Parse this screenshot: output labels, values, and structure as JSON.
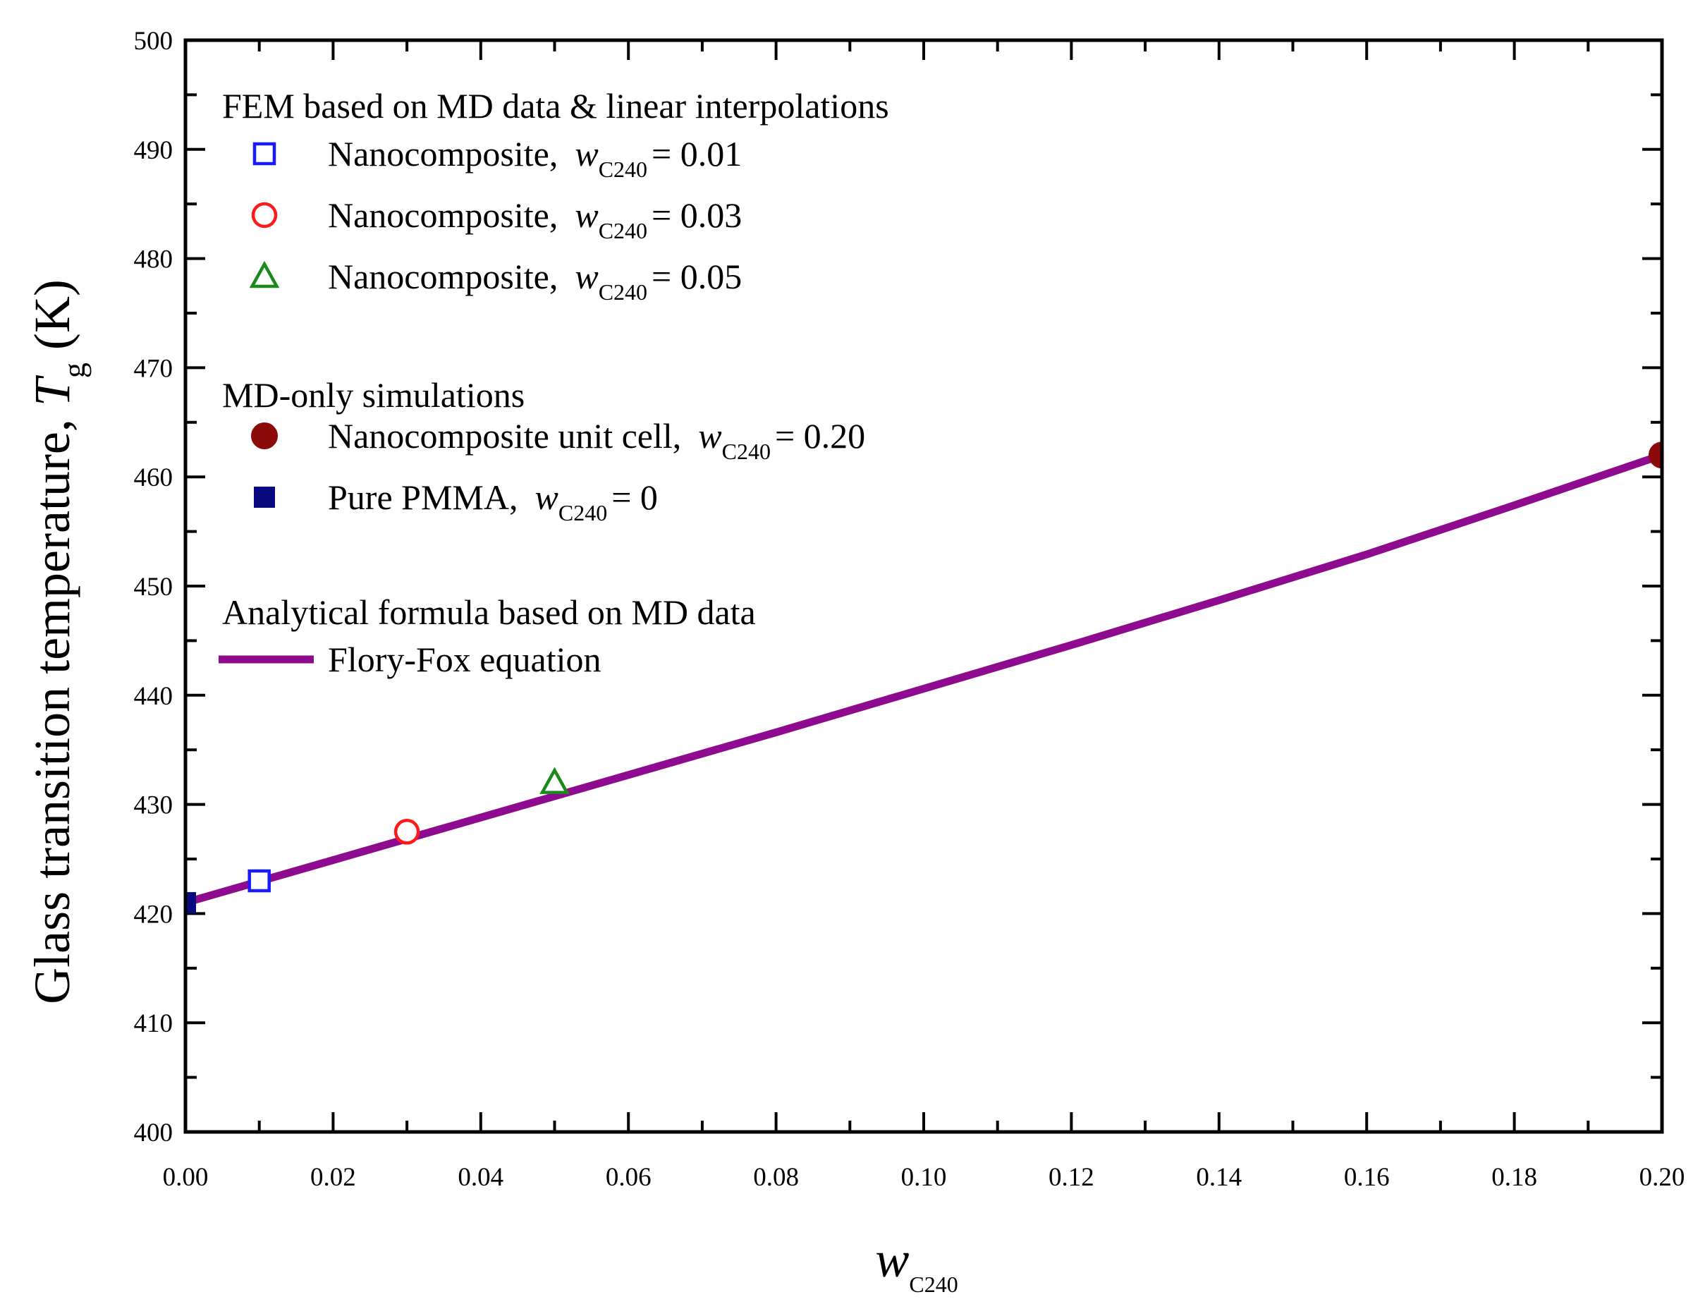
{
  "chart_data": {
    "type": "scatter",
    "xlabel": {
      "var": "w",
      "sub": "C240"
    },
    "ylabel": {
      "prefix": "Glass transition temperature, ",
      "var": "T",
      "sub": "g",
      "unit": " (K)"
    },
    "xlim": [
      0.0,
      0.2
    ],
    "ylim": [
      400,
      500
    ],
    "x_ticks": [
      "0.00",
      "0.02",
      "0.04",
      "0.06",
      "0.08",
      "0.10",
      "0.12",
      "0.14",
      "0.16",
      "0.18",
      "0.20"
    ],
    "y_ticks": [
      "400",
      "410",
      "420",
      "430",
      "440",
      "450",
      "460",
      "470",
      "480",
      "490",
      "500"
    ],
    "legend": {
      "groups": [
        {
          "heading": "FEM based on MD data & linear interpolations",
          "entries": [
            {
              "label": "Nanocomposite,",
              "var": "w",
              "sub": "C240",
              "value": "= 0.01",
              "marker": "open-square",
              "color": "#1a1aff"
            },
            {
              "label": "Nanocomposite,",
              "var": "w",
              "sub": "C240",
              "value": "= 0.03",
              "marker": "open-circle",
              "color": "#ff1a1a"
            },
            {
              "label": "Nanocomposite,",
              "var": "w",
              "sub": "C240",
              "value": "= 0.05",
              "marker": "open-triangle",
              "color": "#1a8a1a"
            }
          ]
        },
        {
          "heading": "MD-only simulations",
          "entries": [
            {
              "label": "Nanocomposite unit cell,",
              "var": "w",
              "sub": "C240",
              "value": "= 0.20",
              "marker": "filled-circle",
              "color": "#8b0a0a"
            },
            {
              "label": "Pure PMMA,",
              "var": "w",
              "sub": "C240",
              "value": "= 0",
              "marker": "filled-square",
              "color": "#0a0a80"
            }
          ]
        },
        {
          "heading": "Analytical formula based on MD data",
          "entries": [
            {
              "label": "Flory-Fox equation",
              "marker": "line",
              "color": "#8e0a8e"
            }
          ]
        }
      ]
    },
    "series": [
      {
        "name": "Nanocomposite, w_C240 = 0.01",
        "marker": "open-square",
        "color": "#1a1aff",
        "x": [
          0.01
        ],
        "y": [
          423.0
        ]
      },
      {
        "name": "Nanocomposite, w_C240 = 0.03",
        "marker": "open-circle",
        "color": "#ff1a1a",
        "x": [
          0.03
        ],
        "y": [
          427.5
        ]
      },
      {
        "name": "Nanocomposite, w_C240 = 0.05",
        "marker": "open-triangle",
        "color": "#1a8a1a",
        "x": [
          0.05
        ],
        "y": [
          432.0
        ]
      },
      {
        "name": "Nanocomposite unit cell, w_C240 = 0.20",
        "marker": "filled-circle",
        "color": "#8b0a0a",
        "x": [
          0.2
        ],
        "y": [
          462.0
        ]
      },
      {
        "name": "Pure PMMA, w_C240 = 0",
        "marker": "filled-square",
        "color": "#0a0a80",
        "x": [
          0.0
        ],
        "y": [
          421.0
        ]
      },
      {
        "name": "Flory-Fox equation",
        "marker": "line",
        "color": "#8e0a8e",
        "x": [
          0.0,
          0.02,
          0.04,
          0.06,
          0.08,
          0.1,
          0.12,
          0.14,
          0.16,
          0.18,
          0.2
        ],
        "y": [
          421.0,
          424.9,
          428.8,
          432.7,
          436.6,
          440.6,
          444.6,
          448.7,
          452.9,
          457.4,
          462.0
        ]
      }
    ]
  }
}
